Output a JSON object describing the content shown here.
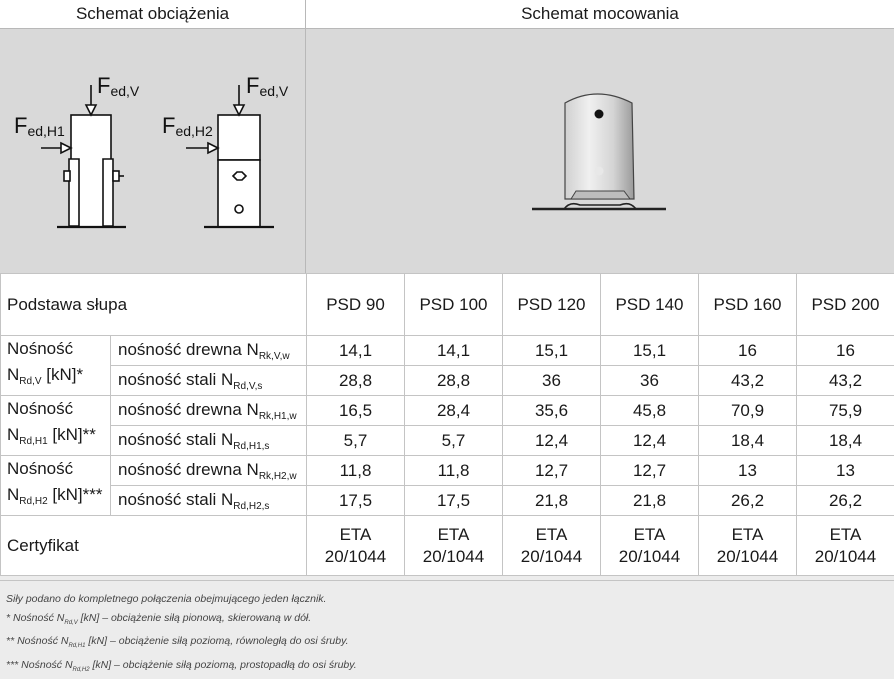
{
  "headers": {
    "load_scheme": "Schemat obciążenia",
    "mount_scheme": "Schemat mocowania"
  },
  "diagram": {
    "force_v_main": "F",
    "force_v_sub": "ed,V",
    "force_h1_main": "F",
    "force_h1_sub": "ed,H1",
    "force_h2_main": "F",
    "force_h2_sub": "ed,H2"
  },
  "table": {
    "base_label": "Podstawa słupa",
    "columns": [
      "PSD 90",
      "PSD 100",
      "PSD 120",
      "PSD 140",
      "PSD 160",
      "PSD 200"
    ],
    "groups": [
      {
        "name": "Nośność",
        "sym_main": "N",
        "sym_sub": "Rd,V",
        "unit": "[kN]*",
        "rows": [
          {
            "label": "nośność drewna N",
            "label_sub": "Rk,V,w",
            "values": [
              "14,1",
              "14,1",
              "15,1",
              "15,1",
              "16",
              "16"
            ]
          },
          {
            "label": "nośność stali N",
            "label_sub": "Rd,V,s",
            "values": [
              "28,8",
              "28,8",
              "36",
              "36",
              "43,2",
              "43,2"
            ]
          }
        ]
      },
      {
        "name": "Nośność",
        "sym_main": "N",
        "sym_sub": "Rd,H1",
        "unit": "[kN]**",
        "rows": [
          {
            "label": "nośność drewna N",
            "label_sub": "Rk,H1,w",
            "values": [
              "16,5",
              "28,4",
              "35,6",
              "45,8",
              "70,9",
              "75,9"
            ]
          },
          {
            "label": "nośność stali N",
            "label_sub": "Rd,H1,s",
            "values": [
              "5,7",
              "5,7",
              "12,4",
              "12,4",
              "18,4",
              "18,4"
            ]
          }
        ]
      },
      {
        "name": "Nośność",
        "sym_main": "N",
        "sym_sub": "Rd,H2",
        "unit": "[kN]***",
        "rows": [
          {
            "label": "nośność drewna N",
            "label_sub": "Rk,H2,w",
            "values": [
              "11,8",
              "11,8",
              "12,7",
              "12,7",
              "13",
              "13"
            ]
          },
          {
            "label": "nośność stali N",
            "label_sub": "Rd,H2,s",
            "values": [
              "17,5",
              "17,5",
              "21,8",
              "21,8",
              "26,2",
              "26,2"
            ]
          }
        ]
      }
    ],
    "cert_label": "Certyfikat",
    "cert_line1": "ETA",
    "cert_line2": "20/1044"
  },
  "footer": {
    "line1": "Siły podano do kompletnego połączenia obejmującego jeden łącznik.",
    "line2_a": "* Nośność N",
    "line2_sub": "Rd,V",
    "line2_b": " [kN] – obciążenie siłą pionową, skierowaną w dół.",
    "line3_a": "** Nośność N",
    "line3_sub": "Rd,H1",
    "line3_b": " [kN] – obciążenie siłą poziomą, równoległą do osi śruby.",
    "line4_a": "*** Nośność N",
    "line4_sub": "Rd,H2",
    "line4_b": " [kN] – obciążenie siłą poziomą, prostopadłą do osi śruby."
  }
}
